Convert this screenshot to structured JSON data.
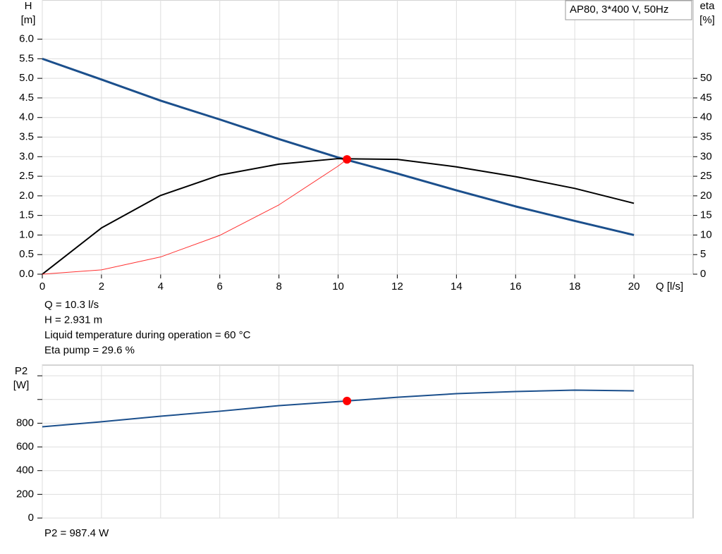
{
  "chart_data": [
    {
      "type": "line",
      "legend_text": "AP80, 3*400 V, 50Hz",
      "ylabel": [
        "H",
        "[m]"
      ],
      "y2label": [
        "eta",
        "[%]"
      ],
      "xlabel": "Q [l/s]",
      "xlim": [
        0,
        22
      ],
      "ylim": [
        0,
        7
      ],
      "y2lim": [
        0,
        70
      ],
      "xticks": [
        0,
        2,
        4,
        6,
        8,
        10,
        12,
        14,
        16,
        18,
        20
      ],
      "yticks": [
        {
          "value": 0,
          "label": "0.0"
        },
        {
          "value": 0.5,
          "label": "0.5"
        },
        {
          "value": 1,
          "label": "1.0"
        },
        {
          "value": 1.5,
          "label": "1.5"
        },
        {
          "value": 2,
          "label": "2.0"
        },
        {
          "value": 2.5,
          "label": "2.5"
        },
        {
          "value": 3,
          "label": "3.0"
        },
        {
          "value": 3.5,
          "label": "3.5"
        },
        {
          "value": 4,
          "label": "4.0"
        },
        {
          "value": 4.5,
          "label": "4.5"
        },
        {
          "value": 5,
          "label": "5.0"
        },
        {
          "value": 5.5,
          "label": "5.5"
        },
        {
          "value": 6,
          "label": "6.0"
        }
      ],
      "y2ticks": [
        0,
        5,
        10,
        15,
        20,
        25,
        30,
        35,
        40,
        45,
        50
      ],
      "grid": true,
      "series": [
        {
          "color": "#1b4f8c",
          "width": 3,
          "x": [
            0,
            2,
            4,
            6,
            8,
            10,
            12,
            14,
            16,
            18,
            20
          ],
          "values": [
            5.5,
            4.97,
            4.43,
            3.95,
            3.45,
            2.98,
            2.57,
            2.14,
            1.73,
            1.36,
            1.0
          ]
        },
        {
          "color": "#000000",
          "width": 2,
          "axis": "y2",
          "x": [
            0,
            2,
            4,
            6,
            8,
            10,
            12,
            14,
            16,
            18,
            20
          ],
          "values": [
            0,
            11.8,
            20.1,
            25.3,
            28.1,
            29.5,
            29.3,
            27.4,
            24.9,
            21.9,
            18.1
          ]
        },
        {
          "color": "#ff3030",
          "width": 1,
          "x": [
            0,
            2,
            4,
            6,
            8,
            10,
            10.3
          ],
          "values": [
            0,
            0.11,
            0.44,
            0.99,
            1.77,
            2.76,
            2.931
          ]
        }
      ],
      "operating_point": {
        "x": 10.3,
        "y": 2.931,
        "color": "#ff0000"
      },
      "info": [
        "Q = 10.3 l/s",
        "H = 2.931 m",
        "Liquid temperature during operation = 60 °C",
        "Eta pump = 29.6 %"
      ]
    },
    {
      "type": "line",
      "ylabel": [
        "P2",
        "[W]"
      ],
      "xlim": [
        0,
        22
      ],
      "ylim": [
        0,
        1290
      ],
      "yticks": [
        0,
        200,
        400,
        600,
        800
      ],
      "yticks_unlabeled": [
        1000,
        1200
      ],
      "grid": true,
      "series": [
        {
          "color": "#1b4f8c",
          "width": 2,
          "x": [
            0,
            2,
            4,
            6,
            8,
            10.3,
            12,
            14,
            16,
            18,
            20
          ],
          "values": [
            770,
            812,
            859,
            901,
            948,
            987.4,
            1019,
            1049,
            1067,
            1079,
            1073
          ]
        }
      ],
      "operating_point": {
        "x": 10.3,
        "y": 987.4,
        "color": "#ff0000"
      },
      "info": [
        "P2 = 987.4 W"
      ]
    }
  ]
}
